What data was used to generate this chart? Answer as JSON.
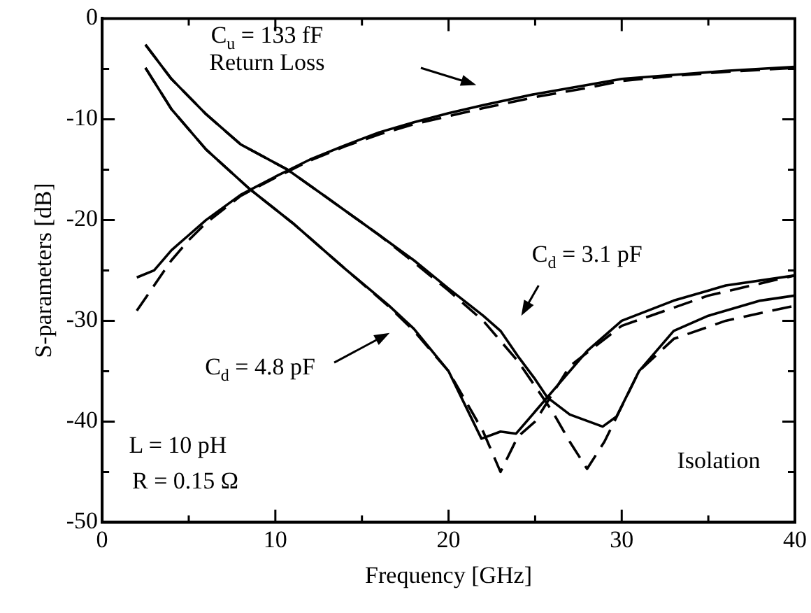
{
  "chart_data": {
    "type": "line",
    "xlabel": "Frequency [GHz]",
    "ylabel": "S-parameters [dB]",
    "xlim": [
      0,
      40
    ],
    "ylim": [
      -50,
      0
    ],
    "xticks": [
      0,
      {
        "value": 5,
        "label": null
      },
      10,
      {
        "value": 15,
        "label": null
      },
      20,
      {
        "value": 25,
        "label": null
      },
      30,
      {
        "value": 35,
        "label": null
      },
      40
    ],
    "yticks": [
      -50,
      {
        "value": -45,
        "label": null
      },
      -40,
      {
        "value": -35,
        "label": null
      },
      -30,
      {
        "value": -25,
        "label": null
      },
      -20,
      {
        "value": -15,
        "label": null
      },
      -10,
      {
        "value": -5,
        "label": null
      },
      0
    ],
    "grid": false,
    "legend": false,
    "marker": "none",
    "series": [
      {
        "color": "#000000",
        "line_style": "solid",
        "x": [
          2,
          3,
          4,
          5,
          6,
          8,
          10,
          12,
          14,
          16,
          18,
          20,
          22,
          25,
          28,
          30,
          33,
          36,
          40
        ],
        "values": [
          -25.7,
          -25,
          -23,
          -21.5,
          -20,
          -17.5,
          -15.7,
          -14,
          -12.6,
          -11.3,
          -10.3,
          -9.4,
          -8.6,
          -7.5,
          -6.6,
          -6,
          -5.6,
          -5.2,
          -4.8
        ]
      },
      {
        "color": "#000000",
        "line_style": "dashed",
        "x": [
          2,
          3,
          4,
          5,
          6,
          8,
          10,
          12,
          14,
          16,
          18,
          20,
          22,
          25,
          28,
          30,
          33,
          36,
          40
        ],
        "values": [
          -29,
          -26.5,
          -24,
          -22,
          -20.3,
          -17.6,
          -15.8,
          -14.1,
          -12.7,
          -11.5,
          -10.5,
          -9.7,
          -8.9,
          -7.8,
          -6.9,
          -6.2,
          -5.7,
          -5.3,
          -4.9
        ]
      },
      {
        "color": "#000000",
        "line_style": "solid",
        "x": [
          2.5,
          4,
          6,
          8,
          10.7,
          13,
          16,
          18,
          20,
          22,
          23,
          24,
          25,
          25.7,
          27,
          28.9,
          29.7,
          31,
          33,
          35,
          38,
          40
        ],
        "values": [
          -2.6,
          -6,
          -9.5,
          -12.5,
          -15,
          -17.8,
          -21.5,
          -24,
          -26.8,
          -29.5,
          -31,
          -33.5,
          -35.8,
          -37.6,
          -39.3,
          -40.5,
          -39.5,
          -35,
          -31,
          -29.5,
          -28,
          -27.5
        ]
      },
      {
        "color": "#000000",
        "line_style": "dashed",
        "x": [
          2.5,
          4,
          6,
          8,
          10.7,
          13,
          16,
          18,
          20,
          22,
          24,
          26,
          27,
          28,
          29,
          30,
          31,
          33,
          36,
          40
        ],
        "values": [
          -2.6,
          -6,
          -9.5,
          -12.5,
          -15,
          -17.8,
          -21.5,
          -24.2,
          -27,
          -30,
          -34,
          -39,
          -42,
          -44.7,
          -42,
          -38.5,
          -35,
          -31.8,
          -30,
          -28.5
        ]
      },
      {
        "color": "#000000",
        "line_style": "solid",
        "x": [
          2.5,
          4,
          6,
          8.5,
          11,
          14,
          16.5,
          18,
          20,
          21.9,
          23,
          23.9,
          25,
          25.7,
          28,
          30,
          33,
          36,
          40
        ],
        "values": [
          -4.9,
          -9,
          -13,
          -16.9,
          -20.3,
          -24.8,
          -28.4,
          -30.8,
          -35,
          -41.7,
          -41,
          -41.2,
          -39,
          -37.6,
          -33,
          -30,
          -28,
          -26.5,
          -25.5
        ]
      },
      {
        "color": "#000000",
        "line_style": "dashed",
        "x": [
          2.5,
          4,
          6,
          8.5,
          11,
          14,
          16.5,
          18,
          20,
          22,
          23,
          24,
          25,
          27,
          30,
          35,
          40
        ],
        "values": [
          -4.9,
          -9,
          -13,
          -16.9,
          -20.3,
          -24.8,
          -28.5,
          -31,
          -35,
          -41,
          -45,
          -41.5,
          -40,
          -34.5,
          -30.5,
          -27.5,
          -25.5
        ]
      }
    ],
    "annotations": [
      "C$_{u}$ = 133 fF",
      "Return Loss",
      "C$_{d}$ = 3.1 pF",
      "C$_{d}$ = 4.8 pF",
      "L = 10 pH",
      "R = 0.15 Ω",
      "Isolation"
    ]
  }
}
